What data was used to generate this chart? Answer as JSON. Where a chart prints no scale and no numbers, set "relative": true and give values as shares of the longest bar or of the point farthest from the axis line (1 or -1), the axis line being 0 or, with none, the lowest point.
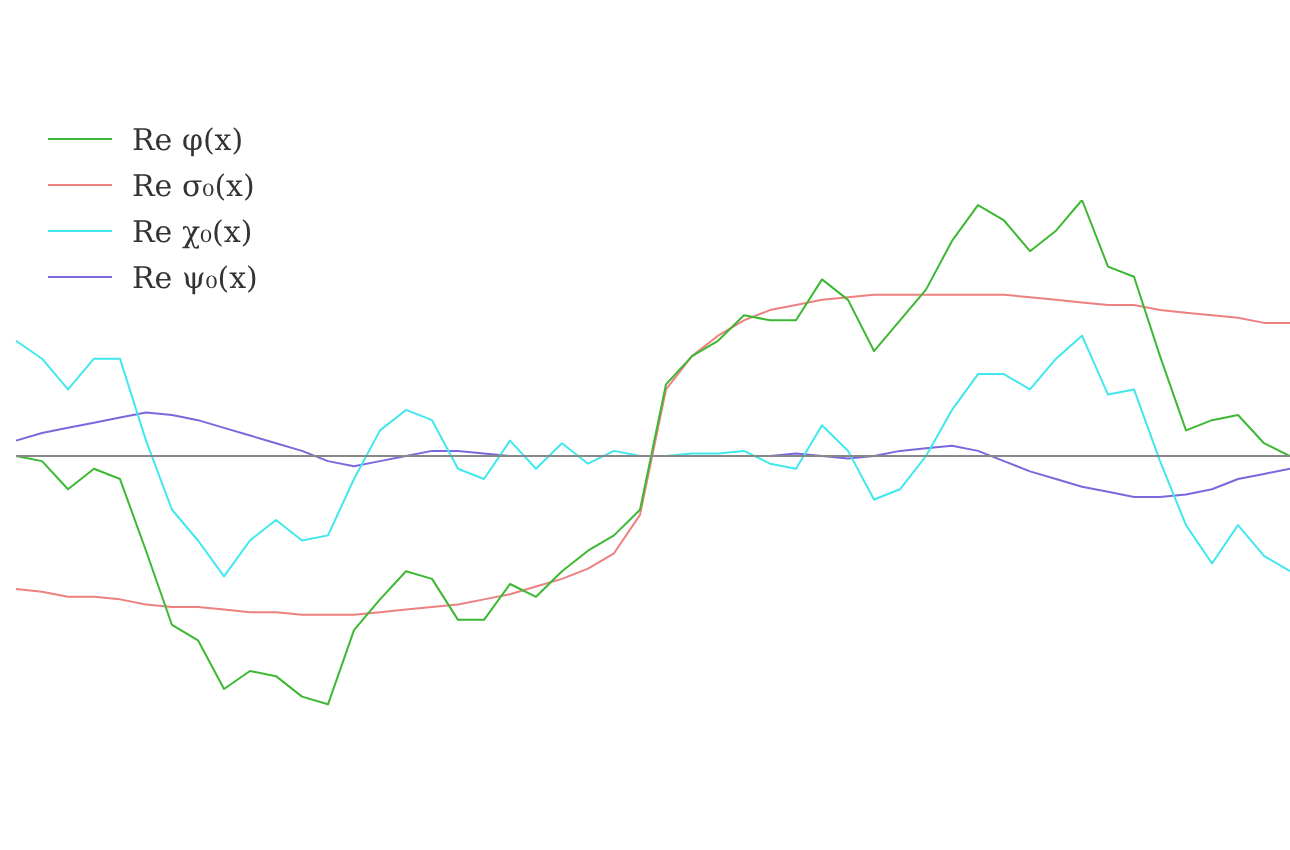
{
  "chart_data": {
    "type": "line",
    "relative": true,
    "legend": "top left",
    "marker": "none",
    "categories": [
      null,
      null,
      null,
      null,
      null,
      null,
      null,
      null,
      null,
      null,
      null,
      null,
      null,
      null,
      null,
      null,
      null,
      null,
      null,
      null,
      null,
      null,
      null,
      null,
      null,
      null,
      null,
      null,
      null,
      null,
      null,
      null,
      null,
      null,
      null,
      null,
      null,
      null,
      null,
      null,
      null,
      null,
      null,
      null,
      null,
      null,
      null,
      null,
      null,
      null
    ],
    "series": [
      {
        "name": "Re φ(x)",
        "color": "#3cb832",
        "values": [
          0,
          -0.02,
          -0.13,
          -0.05,
          -0.09,
          -0.37,
          -0.66,
          -0.72,
          -0.91,
          -0.84,
          -0.86,
          -0.94,
          -0.97,
          -0.68,
          -0.56,
          -0.45,
          -0.48,
          -0.64,
          -0.64,
          -0.5,
          -0.55,
          -0.45,
          -0.37,
          -0.31,
          -0.21,
          0.28,
          0.39,
          0.45,
          0.55,
          0.53,
          0.53,
          0.69,
          0.61,
          0.41,
          0.53,
          0.65,
          0.84,
          0.98,
          0.92,
          0.8,
          0.88,
          1,
          0.74,
          0.7,
          0.39,
          0.1,
          0.14,
          0.16,
          0.05,
          0
        ]
      },
      {
        "name": "Re σ₀(x)",
        "color": "#ee8080",
        "values": [
          -0.52,
          -0.53,
          -0.55,
          -0.55,
          -0.56,
          -0.58,
          -0.59,
          -0.59,
          -0.6,
          -0.61,
          -0.61,
          -0.62,
          -0.62,
          -0.62,
          -0.61,
          -0.6,
          -0.59,
          -0.58,
          -0.56,
          -0.54,
          -0.51,
          -0.48,
          -0.44,
          -0.38,
          -0.23,
          0.26,
          0.39,
          0.47,
          0.53,
          0.57,
          0.59,
          0.61,
          0.62,
          0.63,
          0.63,
          0.63,
          0.63,
          0.63,
          0.63,
          0.62,
          0.61,
          0.6,
          0.59,
          0.59,
          0.57,
          0.56,
          0.55,
          0.54,
          0.52,
          0.52
        ]
      },
      {
        "name": "Re χ₀(x)",
        "color": "#40e8ee",
        "values": [
          0.45,
          0.38,
          0.26,
          0.38,
          0.38,
          0.06,
          -0.21,
          -0.33,
          -0.47,
          -0.33,
          -0.25,
          -0.33,
          -0.31,
          -0.09,
          0.1,
          0.18,
          0.14,
          -0.05,
          -0.09,
          0.06,
          -0.05,
          0.05,
          -0.03,
          0.02,
          0,
          0,
          0.01,
          0.01,
          0.02,
          -0.03,
          -0.05,
          0.12,
          0.02,
          -0.17,
          -0.13,
          0,
          0.18,
          0.32,
          0.32,
          0.26,
          0.38,
          0.47,
          0.24,
          0.26,
          -0.02,
          -0.27,
          -0.42,
          -0.27,
          -0.39,
          -0.45
        ]
      },
      {
        "name": "Re ψ₀(x)",
        "color": "#7a68dd",
        "values": [
          0.06,
          0.09,
          0.11,
          0.13,
          0.15,
          0.17,
          0.16,
          0.14,
          0.11,
          0.08,
          0.05,
          0.02,
          -0.02,
          -0.04,
          -0.02,
          0,
          0.02,
          0.02,
          0.01,
          0,
          0,
          0,
          0,
          0,
          0,
          0,
          0,
          0,
          0,
          0,
          0.01,
          0,
          -0.01,
          0,
          0.02,
          0.03,
          0.04,
          0.02,
          -0.02,
          -0.06,
          -0.09,
          -0.12,
          -0.14,
          -0.16,
          -0.16,
          -0.15,
          -0.13,
          -0.09,
          -0.07,
          -0.05
        ]
      }
    ]
  }
}
